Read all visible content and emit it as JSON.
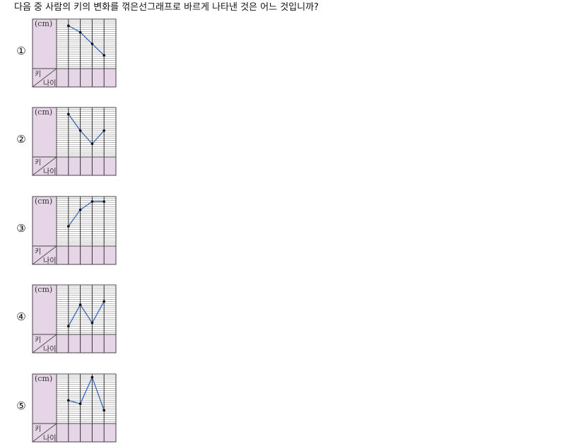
{
  "question": "다음 중 사람의 키의 변화를 꺾은선그래프로 바르게 나타낸 것은 어느 것입니까?",
  "common": {
    "unit_label": "(cm)",
    "row_label_top": "키",
    "row_label_bottom": "나이"
  },
  "options": [
    {
      "label": "①"
    },
    {
      "label": "②"
    },
    {
      "label": "③"
    },
    {
      "label": "④"
    },
    {
      "label": "⑤"
    }
  ],
  "colors": {
    "line": "#3f6fbd",
    "point": "#111111",
    "label_panel": "#e6d5e6",
    "grid_major": "#333333",
    "grid_minor": "#8a8a8a",
    "border": "#444444"
  },
  "chart_data": [
    {
      "type": "line",
      "x": [
        1,
        2,
        3,
        4
      ],
      "values": [
        26,
        22,
        15,
        8
      ],
      "ylim": [
        0,
        30
      ]
    },
    {
      "type": "line",
      "x": [
        1,
        2,
        3,
        4
      ],
      "values": [
        26,
        16,
        8,
        16
      ],
      "ylim": [
        0,
        30
      ]
    },
    {
      "type": "line",
      "x": [
        1,
        2,
        3,
        4
      ],
      "values": [
        12,
        22,
        27,
        27
      ],
      "ylim": [
        0,
        30
      ]
    },
    {
      "type": "line",
      "x": [
        1,
        2,
        3,
        4
      ],
      "values": [
        5,
        18,
        7,
        20
      ],
      "ylim": [
        0,
        30
      ]
    },
    {
      "type": "line",
      "x": [
        1,
        2,
        3,
        4
      ],
      "values": [
        14,
        12,
        28,
        8
      ],
      "ylim": [
        0,
        30
      ]
    }
  ]
}
